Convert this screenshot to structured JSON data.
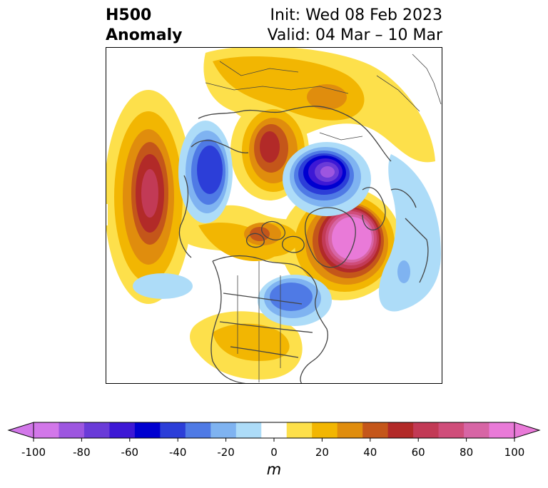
{
  "title": {
    "left_line1": "H500",
    "left_line2": "Anomaly",
    "right_line1": "Init: Wed 08 Feb 2023",
    "right_line2": "Valid: 04 Mar – 10 Mar"
  },
  "colorbar": {
    "unit": "m",
    "ticks": [
      "-100",
      "-80",
      "-60",
      "-40",
      "-20",
      "0",
      "20",
      "40",
      "60",
      "80",
      "100"
    ],
    "levels": [
      -100,
      -90,
      -80,
      -70,
      -60,
      -50,
      -40,
      -30,
      -20,
      -10,
      10,
      20,
      30,
      40,
      50,
      60,
      70,
      80,
      90,
      100
    ],
    "colors": [
      "#d277e9",
      "#9d56e0",
      "#6a3bd8",
      "#3d18d5",
      "#0000d0",
      "#2c3ed8",
      "#4f7ae5",
      "#7fb3f1",
      "#addcf8",
      "#ffffff",
      "#fde04b",
      "#f2b602",
      "#e08d0d",
      "#c4561a",
      "#b22a28",
      "#c23a56",
      "#cf4d7a",
      "#d765a5",
      "#e97ad8"
    ],
    "extend_low_color": "#d277e9",
    "extend_high_color": "#e97ad8"
  },
  "map": {
    "projection": "north-polar-stereographic",
    "field": "500 hPa geopotential height anomaly",
    "features": [
      {
        "region": "central-north-pacific",
        "sign": "positive",
        "peak_m": 80
      },
      {
        "region": "siberia",
        "sign": "negative",
        "peak_m": -50
      },
      {
        "region": "east-siberian-arctic",
        "sign": "positive",
        "peak_m": 60
      },
      {
        "region": "northern-europe-arctic",
        "sign": "negative",
        "peak_m": -90
      },
      {
        "region": "greenland-north-atlantic",
        "sign": "positive",
        "peak_m": 100
      },
      {
        "region": "canadian-arctic",
        "sign": "positive",
        "peak_m": 50
      },
      {
        "region": "eastern-canada",
        "sign": "negative",
        "peak_m": -40
      },
      {
        "region": "southern-us",
        "sign": "positive",
        "peak_m": 30
      },
      {
        "region": "western-europe-atlantic",
        "sign": "negative",
        "peak_m": -20
      },
      {
        "region": "eurasia-north",
        "sign": "positive",
        "peak_m": 40
      },
      {
        "region": "east-pacific-subtropics",
        "sign": "negative",
        "peak_m": -10
      }
    ]
  }
}
